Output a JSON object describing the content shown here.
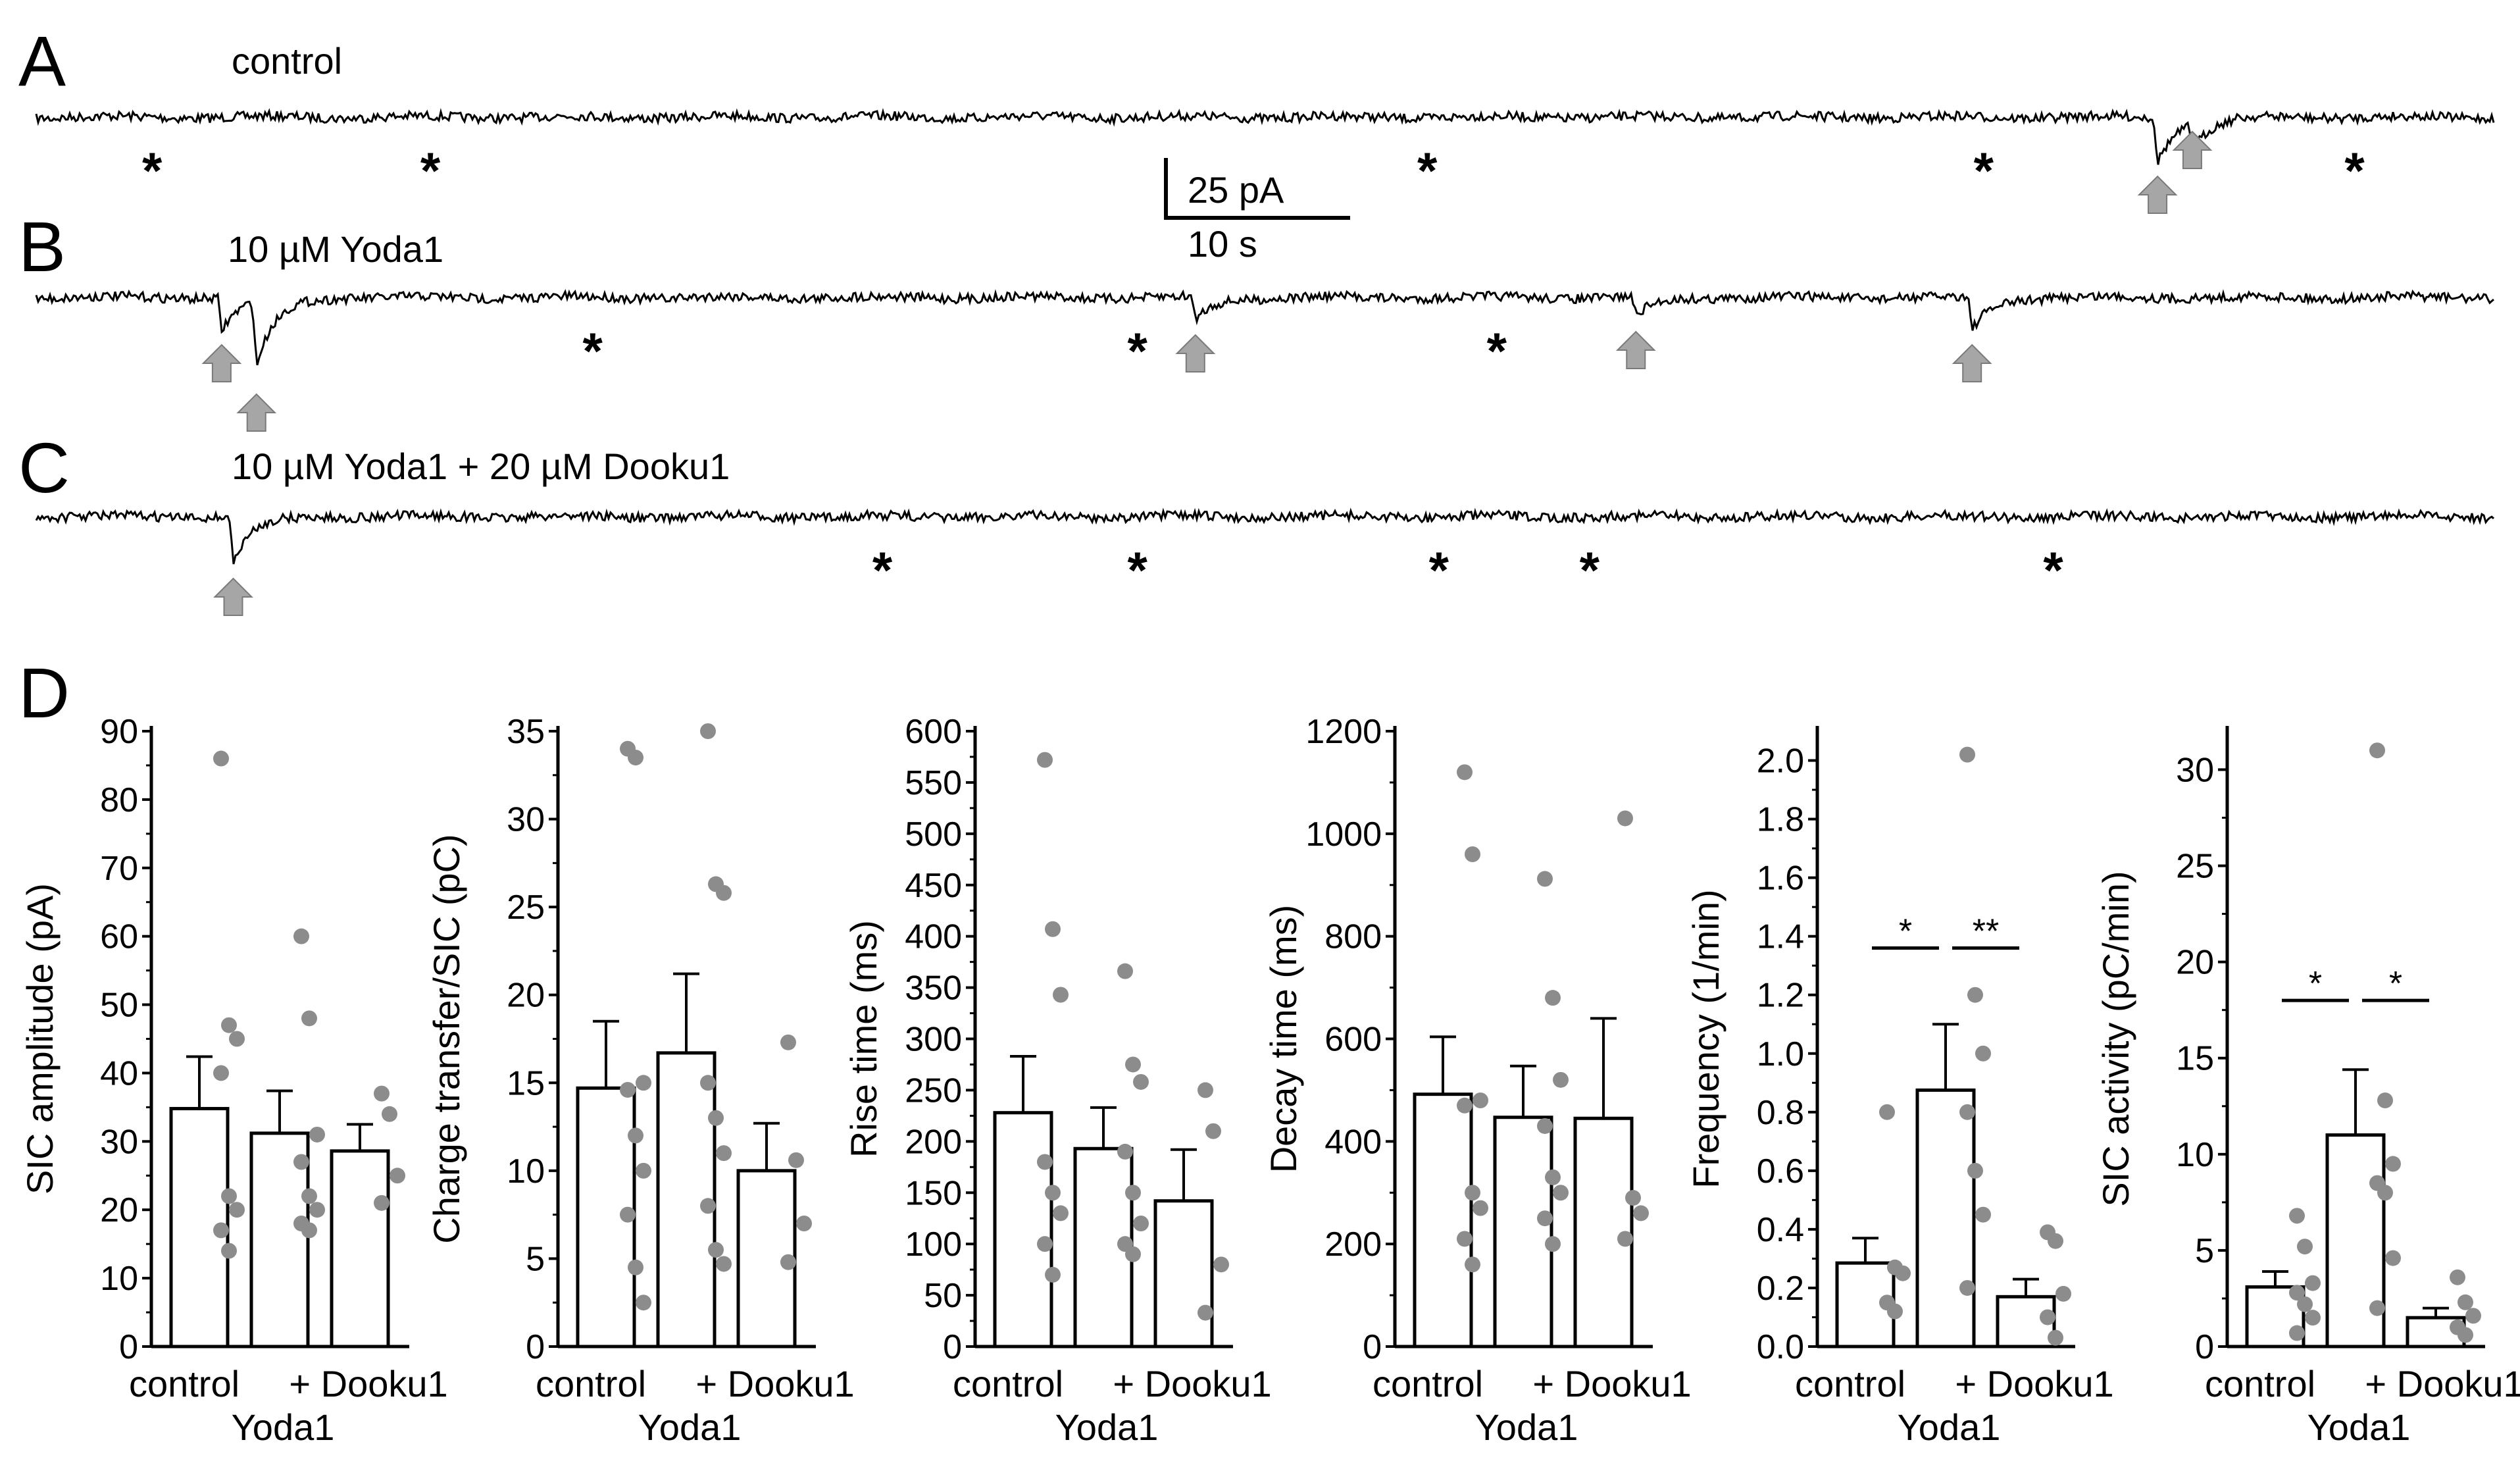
{
  "panels": {
    "A": {
      "letter": "A",
      "condition": "control"
    },
    "B": {
      "letter": "B",
      "condition": "10 µM Yoda1"
    },
    "C": {
      "letter": "C",
      "condition": "10 µM Yoda1 + 20 µM Dooku1"
    },
    "D": {
      "letter": "D"
    }
  },
  "scale_bar": {
    "current": "25 pA",
    "time": "10 s"
  },
  "traces": {
    "A": {
      "sic_times_s": [
        183,
        186
      ],
      "asterisk_times_s": [
        10,
        34,
        120,
        168,
        200
      ]
    },
    "B": {
      "sic_times_s": [
        16,
        19,
        100,
        138,
        167
      ],
      "asterisk_times_s": [
        48,
        95,
        126
      ]
    },
    "C": {
      "sic_times_s": [
        17
      ],
      "asterisk_times_s": [
        73,
        95,
        121,
        134,
        174
      ]
    }
  },
  "colors": {
    "trace": "#000000",
    "arrow": "#a6a6a6",
    "dot": "#8c8c8c",
    "bar_edge": "#000000"
  },
  "chart_data": [
    {
      "type": "bar",
      "ylabel": "SIC amplitude (pA)",
      "categories": [
        "control",
        "Yoda1",
        "+ Dooku1"
      ],
      "x_labels": [
        "control",
        "+ Dooku1"
      ],
      "group_label": "Yoda1",
      "values": [
        34.8,
        31.2,
        28.6
      ],
      "errors": [
        7.6,
        6.2,
        3.9
      ],
      "points": [
        [
          86,
          47,
          45,
          40,
          22,
          20,
          17,
          14
        ],
        [
          60,
          48,
          31,
          27,
          22,
          20,
          18,
          17
        ],
        [
          37,
          34,
          25,
          21
        ]
      ],
      "ylim": [
        0,
        90
      ],
      "yticks": [
        0,
        10,
        20,
        30,
        40,
        50,
        60,
        70,
        80,
        90
      ],
      "significance": []
    },
    {
      "type": "bar",
      "ylabel": "Charge transfer/SIC (pC)",
      "categories": [
        "control",
        "Yoda1",
        "+ Dooku1"
      ],
      "x_labels": [
        "control",
        "+ Dooku1"
      ],
      "group_label": "Yoda1",
      "values": [
        14.7,
        16.7,
        10.0
      ],
      "errors": [
        3.8,
        4.5,
        2.7
      ],
      "points": [
        [
          34,
          33.5,
          15,
          14.6,
          12,
          10,
          7.5,
          4.5,
          2.5
        ],
        [
          35,
          26.3,
          25.8,
          15,
          13,
          11,
          8,
          5.5,
          4.7
        ],
        [
          17.3,
          10.6,
          7,
          4.8
        ]
      ],
      "ylim": [
        0,
        35
      ],
      "yticks": [
        0,
        5,
        10,
        15,
        20,
        25,
        30,
        35
      ],
      "significance": []
    },
    {
      "type": "bar",
      "ylabel": "Rise time (ms)",
      "categories": [
        "control",
        "Yoda1",
        "+ Dooku1"
      ],
      "x_labels": [
        "control",
        "+ Dooku1"
      ],
      "group_label": "Yoda1",
      "values": [
        228,
        193,
        142
      ],
      "errors": [
        55,
        40,
        50
      ],
      "points": [
        [
          572,
          407,
          343,
          180,
          150,
          130,
          100,
          70
        ],
        [
          366,
          275,
          258,
          190,
          150,
          120,
          100,
          90
        ],
        [
          250,
          210,
          80,
          33
        ]
      ],
      "ylim": [
        0,
        600
      ],
      "yticks": [
        0,
        50,
        100,
        150,
        200,
        250,
        300,
        350,
        400,
        450,
        500,
        550,
        600
      ],
      "significance": []
    },
    {
      "type": "bar",
      "ylabel": "Decay time (ms)",
      "categories": [
        "control",
        "Yoda1",
        "+ Dooku1"
      ],
      "x_labels": [
        "control",
        "+ Dooku1"
      ],
      "group_label": "Yoda1",
      "values": [
        492,
        447,
        445
      ],
      "errors": [
        112,
        100,
        195
      ],
      "points": [
        [
          1120,
          960,
          480,
          470,
          300,
          270,
          210,
          160
        ],
        [
          912,
          680,
          520,
          430,
          330,
          300,
          250,
          200
        ],
        [
          1030,
          290,
          260,
          210
        ]
      ],
      "ylim": [
        0,
        1200
      ],
      "yticks": [
        0,
        200,
        400,
        600,
        800,
        1000,
        1200
      ],
      "significance": []
    },
    {
      "type": "bar",
      "ylabel": "Frequency (1/min)",
      "categories": [
        "control",
        "Yoda1",
        "+ Dooku1"
      ],
      "x_labels": [
        "control",
        "+ Dooku1"
      ],
      "group_label": "Yoda1",
      "values": [
        0.285,
        0.875,
        0.17
      ],
      "errors": [
        0.085,
        0.225,
        0.06
      ],
      "points": [
        [
          0.8,
          0.27,
          0.25,
          0.15,
          0.12
        ],
        [
          2.02,
          1.2,
          1.0,
          0.8,
          0.6,
          0.45,
          0.2
        ],
        [
          0.39,
          0.36,
          0.18,
          0.1,
          0.03
        ]
      ],
      "ylim": [
        0,
        2.1
      ],
      "yticks": [
        0.0,
        0.2,
        0.4,
        0.6,
        0.8,
        1.0,
        1.2,
        1.4,
        1.6,
        1.8,
        2.0
      ],
      "tick_format": 1,
      "significance": [
        {
          "from": 0,
          "to": 1,
          "y": 1.36,
          "label": "*"
        },
        {
          "from": 1,
          "to": 2,
          "y": 1.36,
          "label": "**"
        }
      ]
    },
    {
      "type": "bar",
      "ylabel": "SIC activity (pC/min)",
      "categories": [
        "control",
        "Yoda1",
        "+ Dooku1"
      ],
      "x_labels": [
        "control",
        "+ Dooku1"
      ],
      "group_label": "Yoda1",
      "values": [
        3.1,
        11.0,
        1.5
      ],
      "errors": [
        0.8,
        3.4,
        0.5
      ],
      "points": [
        [
          6.8,
          5.2,
          3.3,
          2.8,
          2.2,
          1.5,
          0.7
        ],
        [
          31,
          12.8,
          9.5,
          8.5,
          8.0,
          4.6,
          2.0
        ],
        [
          3.6,
          2.3,
          1.6,
          1.0,
          0.6
        ]
      ],
      "ylim": [
        0,
        32
      ],
      "yticks": [
        0,
        5,
        10,
        15,
        20,
        25,
        30
      ],
      "significance": [
        {
          "from": 0,
          "to": 1,
          "y": 18,
          "label": "*"
        },
        {
          "from": 1,
          "to": 2,
          "y": 18,
          "label": "*"
        }
      ]
    }
  ]
}
